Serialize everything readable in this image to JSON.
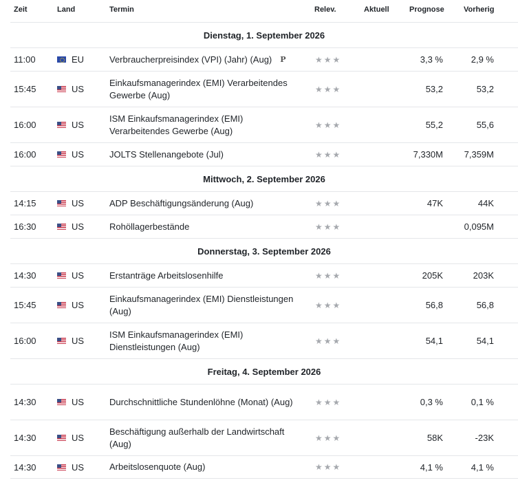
{
  "headers": {
    "zeit": "Zeit",
    "land": "Land",
    "termin": "Termin",
    "relev": "Relev.",
    "aktuell": "Aktuell",
    "prognose": "Prognose",
    "vorherig": "Vorherig"
  },
  "days": [
    {
      "title": "Dienstag, 1. September 2026",
      "events": [
        {
          "time": "11:00",
          "country": "EU",
          "flag": "eu-flag-icon",
          "event": "Verbraucherpreisindex (VPI) (Jahr) (Aug)",
          "badge": "P",
          "relevance": 3,
          "actual": "",
          "forecast": "3,3 %",
          "previous": "2,9 %"
        },
        {
          "time": "15:45",
          "country": "US",
          "flag": "us-flag-icon",
          "event": "Einkaufsmanagerindex (EMI) Verarbeitendes Gewerbe  (Aug)",
          "relevance": 3,
          "actual": "",
          "forecast": "53,2",
          "previous": "53,2"
        },
        {
          "time": "16:00",
          "country": "US",
          "flag": "us-flag-icon",
          "event": "ISM Einkaufsmanagerindex (EMI) Verarbeitendes Gewerbe  (Aug)",
          "relevance": 3,
          "actual": "",
          "forecast": "55,2",
          "previous": "55,6"
        },
        {
          "time": "16:00",
          "country": "US",
          "flag": "us-flag-icon",
          "event": "JOLTS Stellenangebote  (Jul)",
          "relevance": 3,
          "actual": "",
          "forecast": "7,330M",
          "previous": "7,359M"
        }
      ]
    },
    {
      "title": "Mittwoch, 2. September 2026",
      "events": [
        {
          "time": "14:15",
          "country": "US",
          "flag": "us-flag-icon",
          "event": "ADP Beschäftigungsänderung  (Aug)",
          "relevance": 3,
          "actual": "",
          "forecast": "47K",
          "previous": "44K"
        },
        {
          "time": "16:30",
          "country": "US",
          "flag": "us-flag-icon",
          "event": "Rohöllagerbestände",
          "relevance": 3,
          "actual": "",
          "forecast": "",
          "previous": "0,095M"
        }
      ]
    },
    {
      "title": "Donnerstag, 3. September 2026",
      "events": [
        {
          "time": "14:30",
          "country": "US",
          "flag": "us-flag-icon",
          "event": "Erstanträge Arbeitslosenhilfe",
          "relevance": 3,
          "actual": "",
          "forecast": "205K",
          "previous": "203K"
        },
        {
          "time": "15:45",
          "country": "US",
          "flag": "us-flag-icon",
          "event": "Einkaufsmanagerindex (EMI) Dienstleistungen  (Aug)",
          "relevance": 3,
          "actual": "",
          "forecast": "56,8",
          "previous": "56,8"
        },
        {
          "time": "16:00",
          "country": "US",
          "flag": "us-flag-icon",
          "event": "ISM Einkaufsmanagerindex (EMI) Dienstleistungen  (Aug)",
          "relevance": 3,
          "actual": "",
          "forecast": "54,1",
          "previous": "54,1"
        }
      ]
    },
    {
      "title": "Freitag, 4. September 2026",
      "events": [
        {
          "time": "14:30",
          "country": "US",
          "flag": "us-flag-icon",
          "event": "Durchschnittliche Stundenlöhne (Monat)  (Aug)",
          "relevance": 3,
          "actual": "",
          "forecast": "0,3 %",
          "previous": "0,1 %"
        },
        {
          "time": "14:30",
          "country": "US",
          "flag": "us-flag-icon",
          "event": "Beschäftigung außerhalb der Landwirtschaft  (Aug)",
          "relevance": 3,
          "actual": "",
          "forecast": "58K",
          "previous": "-23K"
        },
        {
          "time": "14:30",
          "country": "US",
          "flag": "us-flag-icon",
          "event": "Arbeitslosenquote  (Aug)",
          "relevance": 3,
          "actual": "",
          "forecast": "4,1 %",
          "previous": "4,1 %"
        }
      ]
    }
  ]
}
